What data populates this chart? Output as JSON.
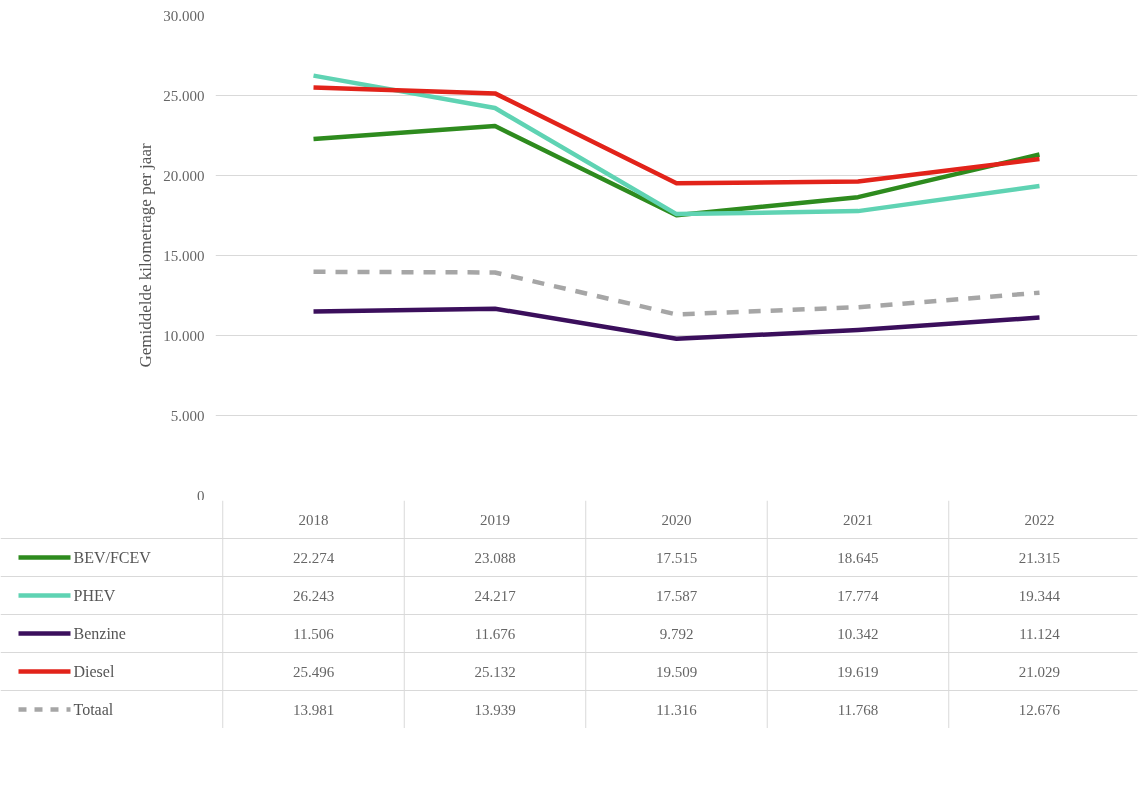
{
  "chart_data": {
    "type": "line",
    "ylabel": "Gemiddelde kilometrage per jaar",
    "categories": [
      "2018",
      "2019",
      "2020",
      "2021",
      "2022"
    ],
    "series": [
      {
        "name": "BEV/FCEV",
        "color": "#2e8b1e",
        "values": [
          22274,
          23088,
          17515,
          18645,
          21315
        ],
        "value_labels": [
          "22.274",
          "23.088",
          "17.515",
          "18.645",
          "21.315"
        ]
      },
      {
        "name": "PHEV",
        "color": "#5fd3b3",
        "values": [
          26243,
          24217,
          17587,
          17774,
          19344
        ],
        "value_labels": [
          "26.243",
          "24.217",
          "17.587",
          "17.774",
          "19.344"
        ]
      },
      {
        "name": "Benzine",
        "color": "#3b0f5c",
        "values": [
          11506,
          11676,
          9792,
          10342,
          11124
        ],
        "value_labels": [
          "11.506",
          "11.676",
          "9.792",
          "10.342",
          "11.124"
        ]
      },
      {
        "name": "Diesel",
        "color": "#e2231a",
        "values": [
          25496,
          25132,
          19509,
          19619,
          21029
        ],
        "value_labels": [
          "25.496",
          "25.132",
          "19.509",
          "19.619",
          "21.029"
        ]
      },
      {
        "name": "Totaal",
        "color": "#a6a6a6",
        "line_style": "dashed",
        "values": [
          13981,
          13939,
          11316,
          11768,
          12676
        ],
        "value_labels": [
          "13.981",
          "13.939",
          "11.316",
          "11.768",
          "12.676"
        ]
      }
    ],
    "ylim": [
      0,
      30000
    ],
    "yticks": [
      0,
      {
        "value": 5000,
        "label": "5.000"
      },
      {
        "value": 10000,
        "label": "10.000"
      },
      {
        "value": 15000,
        "label": "15.000"
      },
      {
        "value": 20000,
        "label": "20.000"
      },
      {
        "value": 25000,
        "label": "25.000"
      },
      {
        "value": 30000,
        "label": "30.000"
      }
    ],
    "grid": "y",
    "legend": "bottom",
    "tick_labels": "y",
    "line_style": "solid"
  }
}
